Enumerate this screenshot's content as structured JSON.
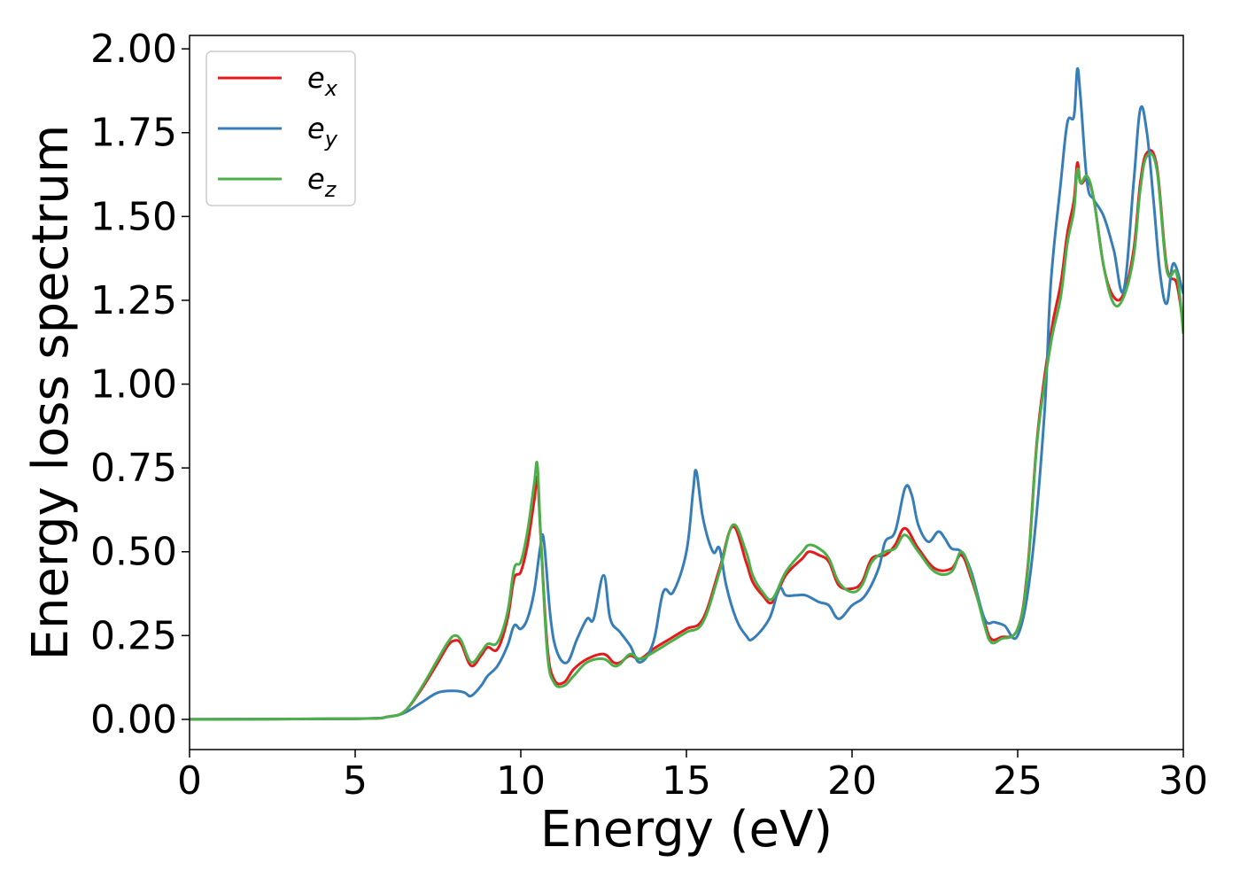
{
  "chart_data": {
    "type": "line",
    "xlabel": "Energy (eV)",
    "ylabel": "Energy loss spectrum",
    "xlim": [
      0,
      30
    ],
    "ylim": [
      -0.09,
      2.04
    ],
    "xticks": [
      "0",
      "5",
      "10",
      "15",
      "20",
      "25",
      "30"
    ],
    "yticks": [
      "0.00",
      "0.25",
      "0.50",
      "0.75",
      "1.00",
      "1.25",
      "1.50",
      "1.75",
      "2.00"
    ],
    "grid": false,
    "legend_position": "top-left",
    "colors": {
      "e_x": "#e41a1c",
      "e_y": "#377eb8",
      "e_z": "#4daf4a"
    },
    "series": [
      {
        "name": "e",
        "subscript": "x",
        "key": "e_x",
        "x": [
          0,
          5,
          6,
          6.5,
          7,
          7.5,
          7.8,
          8,
          8.2,
          8.5,
          8.8,
          9,
          9.3,
          9.6,
          9.8,
          10,
          10.2,
          10.4,
          10.5,
          10.6,
          10.8,
          11,
          11.3,
          11.6,
          12,
          12.5,
          12.8,
          13,
          13.3,
          13.6,
          14,
          14.5,
          15,
          15.5,
          16,
          16.4,
          16.8,
          17,
          17.3,
          17.6,
          18,
          18.5,
          18.7,
          19,
          19.3,
          19.6,
          20,
          20.3,
          20.6,
          21,
          21.3,
          21.6,
          22,
          22.5,
          23,
          23.3,
          23.6,
          24,
          24.2,
          24.5,
          25,
          25.3,
          25.6,
          26,
          26.3,
          26.5,
          26.7,
          26.8,
          26.9,
          27.1,
          27.3,
          27.6,
          27.9,
          28.2,
          28.5,
          28.7,
          28.9,
          29.2,
          29.5,
          29.8,
          30
        ],
        "y": [
          0,
          0.002,
          0.008,
          0.025,
          0.09,
          0.17,
          0.22,
          0.235,
          0.225,
          0.16,
          0.19,
          0.215,
          0.21,
          0.3,
          0.42,
          0.44,
          0.52,
          0.65,
          0.72,
          0.55,
          0.22,
          0.12,
          0.11,
          0.15,
          0.18,
          0.195,
          0.17,
          0.17,
          0.19,
          0.18,
          0.21,
          0.24,
          0.27,
          0.3,
          0.45,
          0.575,
          0.47,
          0.41,
          0.37,
          0.35,
          0.43,
          0.48,
          0.5,
          0.49,
          0.47,
          0.4,
          0.39,
          0.41,
          0.48,
          0.49,
          0.52,
          0.57,
          0.51,
          0.45,
          0.45,
          0.49,
          0.42,
          0.29,
          0.24,
          0.245,
          0.27,
          0.45,
          0.85,
          1.15,
          1.3,
          1.45,
          1.55,
          1.66,
          1.6,
          1.61,
          1.55,
          1.35,
          1.26,
          1.27,
          1.4,
          1.6,
          1.69,
          1.65,
          1.35,
          1.3,
          1.17
        ]
      },
      {
        "name": "e",
        "subscript": "y",
        "key": "e_y",
        "x": [
          0,
          5,
          6,
          6.5,
          7,
          7.5,
          8,
          8.3,
          8.5,
          8.8,
          9,
          9.3,
          9.6,
          9.8,
          10,
          10.2,
          10.4,
          10.6,
          10.7,
          10.9,
          11.1,
          11.4,
          11.7,
          12,
          12.2,
          12.5,
          12.7,
          13,
          13.3,
          13.6,
          14,
          14.3,
          14.6,
          15,
          15.2,
          15.3,
          15.5,
          15.8,
          16,
          16.2,
          16.5,
          16.8,
          17,
          17.5,
          17.8,
          18,
          18.3,
          18.6,
          19,
          19.3,
          19.6,
          20,
          20.4,
          20.8,
          21,
          21.3,
          21.6,
          21.8,
          22,
          22.3,
          22.6,
          22.8,
          23,
          23.3,
          23.6,
          24,
          24.3,
          24.6,
          25,
          25.4,
          25.8,
          26,
          26.3,
          26.5,
          26.7,
          26.8,
          26.9,
          27.1,
          27.3,
          27.6,
          27.9,
          28.2,
          28.5,
          28.7,
          28.9,
          29.1,
          29.3,
          29.5,
          29.7,
          30
        ],
        "y": [
          0,
          0.002,
          0.008,
          0.02,
          0.05,
          0.08,
          0.085,
          0.08,
          0.07,
          0.1,
          0.13,
          0.16,
          0.22,
          0.28,
          0.27,
          0.3,
          0.38,
          0.52,
          0.53,
          0.3,
          0.2,
          0.17,
          0.24,
          0.3,
          0.3,
          0.43,
          0.3,
          0.26,
          0.22,
          0.17,
          0.23,
          0.38,
          0.38,
          0.5,
          0.68,
          0.74,
          0.6,
          0.5,
          0.51,
          0.4,
          0.3,
          0.25,
          0.24,
          0.3,
          0.39,
          0.37,
          0.37,
          0.37,
          0.35,
          0.34,
          0.3,
          0.34,
          0.37,
          0.45,
          0.53,
          0.56,
          0.69,
          0.67,
          0.58,
          0.53,
          0.56,
          0.54,
          0.51,
          0.5,
          0.44,
          0.3,
          0.29,
          0.28,
          0.25,
          0.45,
          0.9,
          1.3,
          1.6,
          1.78,
          1.8,
          1.94,
          1.85,
          1.6,
          1.55,
          1.5,
          1.4,
          1.28,
          1.6,
          1.82,
          1.75,
          1.55,
          1.33,
          1.24,
          1.36,
          1.27
        ]
      },
      {
        "name": "e",
        "subscript": "z",
        "key": "e_z",
        "x": [
          0,
          5,
          6,
          6.5,
          7,
          7.5,
          7.8,
          8,
          8.2,
          8.5,
          8.8,
          9,
          9.3,
          9.6,
          9.8,
          10,
          10.2,
          10.4,
          10.5,
          10.6,
          10.8,
          11,
          11.3,
          11.6,
          12,
          12.5,
          12.8,
          13,
          13.3,
          13.6,
          14,
          14.5,
          15,
          15.5,
          16,
          16.4,
          16.8,
          17,
          17.3,
          17.6,
          18,
          18.5,
          18.7,
          19,
          19.3,
          19.6,
          20,
          20.3,
          20.6,
          21,
          21.3,
          21.6,
          22,
          22.5,
          23,
          23.3,
          23.6,
          24,
          24.2,
          24.5,
          25,
          25.3,
          25.6,
          26,
          26.3,
          26.5,
          26.7,
          26.8,
          26.9,
          27.1,
          27.3,
          27.6,
          27.9,
          28.2,
          28.5,
          28.7,
          28.9,
          29.2,
          29.5,
          29.8,
          30
        ],
        "y": [
          0,
          0.002,
          0.008,
          0.025,
          0.095,
          0.18,
          0.23,
          0.25,
          0.235,
          0.17,
          0.2,
          0.225,
          0.23,
          0.32,
          0.45,
          0.47,
          0.56,
          0.7,
          0.76,
          0.55,
          0.2,
          0.11,
          0.1,
          0.13,
          0.17,
          0.18,
          0.16,
          0.165,
          0.195,
          0.18,
          0.2,
          0.23,
          0.26,
          0.29,
          0.44,
          0.58,
          0.5,
          0.43,
          0.38,
          0.36,
          0.44,
          0.5,
          0.52,
          0.51,
          0.48,
          0.41,
          0.38,
          0.4,
          0.47,
          0.5,
          0.51,
          0.55,
          0.5,
          0.44,
          0.44,
          0.5,
          0.43,
          0.28,
          0.23,
          0.24,
          0.27,
          0.44,
          0.84,
          1.12,
          1.26,
          1.42,
          1.52,
          1.64,
          1.6,
          1.62,
          1.55,
          1.35,
          1.24,
          1.26,
          1.38,
          1.58,
          1.68,
          1.64,
          1.34,
          1.33,
          1.15
        ]
      }
    ]
  }
}
